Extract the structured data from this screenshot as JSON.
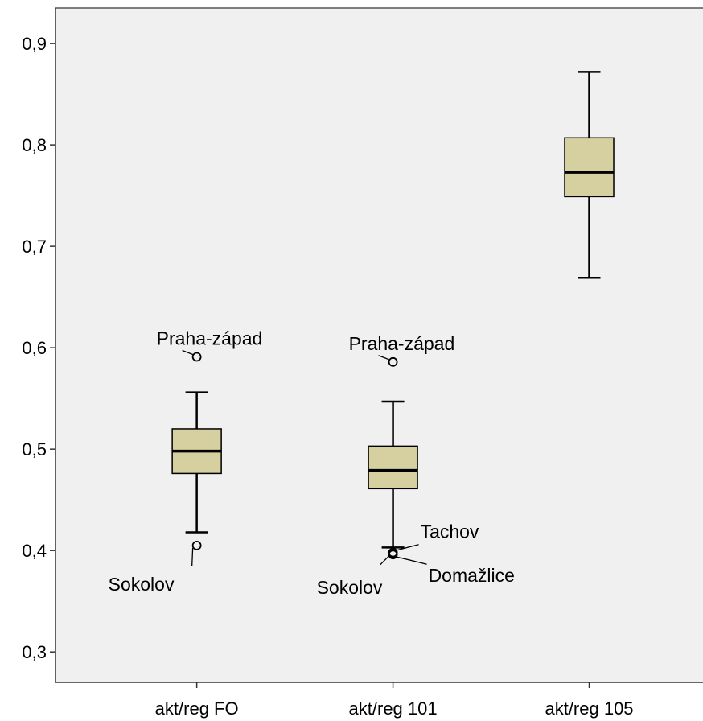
{
  "chart_data": {
    "type": "boxplot",
    "title": "",
    "xlabel": "",
    "ylabel": "",
    "ylim": [
      0.27,
      0.935
    ],
    "yticks": [
      {
        "value": 0.3,
        "label": "0,3"
      },
      {
        "value": 0.4,
        "label": "0,4"
      },
      {
        "value": 0.5,
        "label": "0,5"
      },
      {
        "value": 0.6,
        "label": "0,6"
      },
      {
        "value": 0.7,
        "label": "0,7"
      },
      {
        "value": 0.8,
        "label": "0,8"
      },
      {
        "value": 0.9,
        "label": "0,9"
      }
    ],
    "grid": false,
    "colors": {
      "box_fill": "#d6cf9f",
      "plot_background": "#f0f0f0",
      "stroke": "#000000"
    },
    "categories": [
      "akt/reg FO",
      "akt/reg 101",
      "akt/reg 105"
    ],
    "boxes": [
      {
        "category": "akt/reg FO",
        "whisker_low": 0.418,
        "q1": 0.476,
        "median": 0.498,
        "q3": 0.52,
        "whisker_high": 0.556,
        "outliers": [
          {
            "value": 0.591,
            "label": "Praha-západ"
          },
          {
            "value": 0.405,
            "label": "Sokolov"
          }
        ]
      },
      {
        "category": "akt/reg 101",
        "whisker_low": 0.403,
        "q1": 0.461,
        "median": 0.479,
        "q3": 0.503,
        "whisker_high": 0.547,
        "outliers": [
          {
            "value": 0.586,
            "label": "Praha-západ"
          },
          {
            "value": 0.398,
            "label": "Tachov"
          },
          {
            "value": 0.396,
            "label": "Domažlice"
          },
          {
            "value": 0.397,
            "label": "Sokolov"
          }
        ]
      },
      {
        "category": "akt/reg 105",
        "whisker_low": 0.669,
        "q1": 0.749,
        "median": 0.773,
        "q3": 0.807,
        "whisker_high": 0.872,
        "outliers": []
      }
    ]
  }
}
